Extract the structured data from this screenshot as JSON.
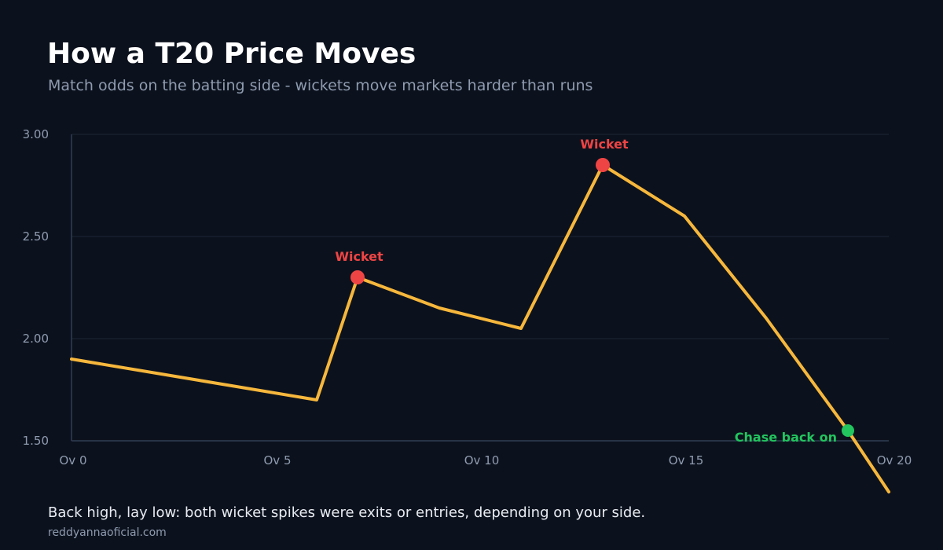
{
  "header": {
    "title": "How a T20 Price Moves",
    "subtitle": "Match odds on the batting side - wickets move markets harder than runs"
  },
  "footer": {
    "note": "Back high, lay low: both wicket spikes were exits or entries, depending on your side.",
    "source": "reddyannaoficial.com"
  },
  "colors": {
    "background": "#0c121d",
    "line": "#f6b73c",
    "wicket": "#ef4444",
    "chase": "#22c55e",
    "grid": "#1c2738",
    "axis": "#2e3d55"
  },
  "chart_data": {
    "type": "line",
    "title": "How a T20 Price Moves",
    "subtitle": "Match odds on the batting side - wickets move markets harder than runs",
    "xlabel": "",
    "ylabel": "",
    "xlim": [
      0,
      20
    ],
    "ylim": [
      1.5,
      3.0
    ],
    "grid": true,
    "x_ticks": [
      0,
      5,
      10,
      15,
      20
    ],
    "x_tick_labels": [
      "Ov 0",
      "Ov 5",
      "Ov 10",
      "Ov 15",
      "Ov 20"
    ],
    "y_ticks": [
      1.5,
      2.0,
      2.5,
      3.0
    ],
    "y_tick_labels": [
      "1.50",
      "2.00",
      "2.50",
      "3.00"
    ],
    "series": [
      {
        "x": [
          0,
          6,
          7,
          9,
          11,
          13,
          15,
          17,
          19,
          20
        ],
        "values": [
          1.9,
          1.7,
          2.3,
          2.15,
          2.05,
          2.85,
          2.6,
          2.1,
          1.55,
          1.25
        ]
      }
    ],
    "annotations": [
      {
        "x": 7,
        "y": 2.3,
        "text": "Wicket",
        "kind": "wicket"
      },
      {
        "x": 13,
        "y": 2.85,
        "text": "Wicket",
        "kind": "wicket"
      },
      {
        "x": 19,
        "y": 1.55,
        "text": "Chase back on",
        "kind": "chase"
      }
    ]
  }
}
